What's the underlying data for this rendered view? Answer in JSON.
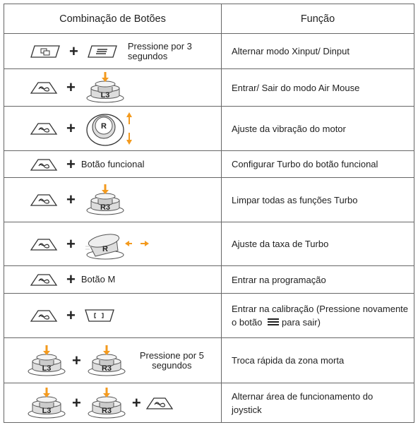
{
  "table": {
    "header": [
      "Combinação de Botões",
      "Função"
    ],
    "rows": [
      {
        "combo": [
          "+",
          "Pressione por 3 segundos"
        ],
        "function": [
          "Alternar modo Xinput/ Dinput"
        ]
      },
      {
        "combo": [
          "+",
          "L3"
        ],
        "function": [
          "Entrar/ Sair do modo Air Mouse"
        ]
      },
      {
        "combo": [
          "+",
          "R"
        ],
        "function": [
          "Ajuste da vibração do motor"
        ]
      },
      {
        "combo": [
          "+",
          "Botão funcional"
        ],
        "function": [
          "Configurar Turbo do botão funcional"
        ]
      },
      {
        "combo": [
          "+",
          "R3"
        ],
        "function": [
          "Limpar todas as funções Turbo"
        ]
      },
      {
        "combo": [
          "+",
          "R"
        ],
        "function": [
          "Ajuste da taxa de Turbo"
        ]
      },
      {
        "combo": [
          "+",
          "Botão M"
        ],
        "function": [
          "Entrar na programação"
        ]
      },
      {
        "combo": [
          "+"
        ],
        "function": [
          "Entrar na calibração (Pressione novamente o botão",
          "para sair)"
        ]
      },
      {
        "combo": [
          "L3",
          "+",
          "R3",
          "Pressione por 5 segundos"
        ],
        "function": [
          "Troca rápida da zona morta"
        ]
      },
      {
        "combo": [
          "L3",
          "+",
          "R3",
          "+"
        ],
        "function": [
          "Alternar área de funcionamento do joystick"
        ]
      }
    ]
  }
}
